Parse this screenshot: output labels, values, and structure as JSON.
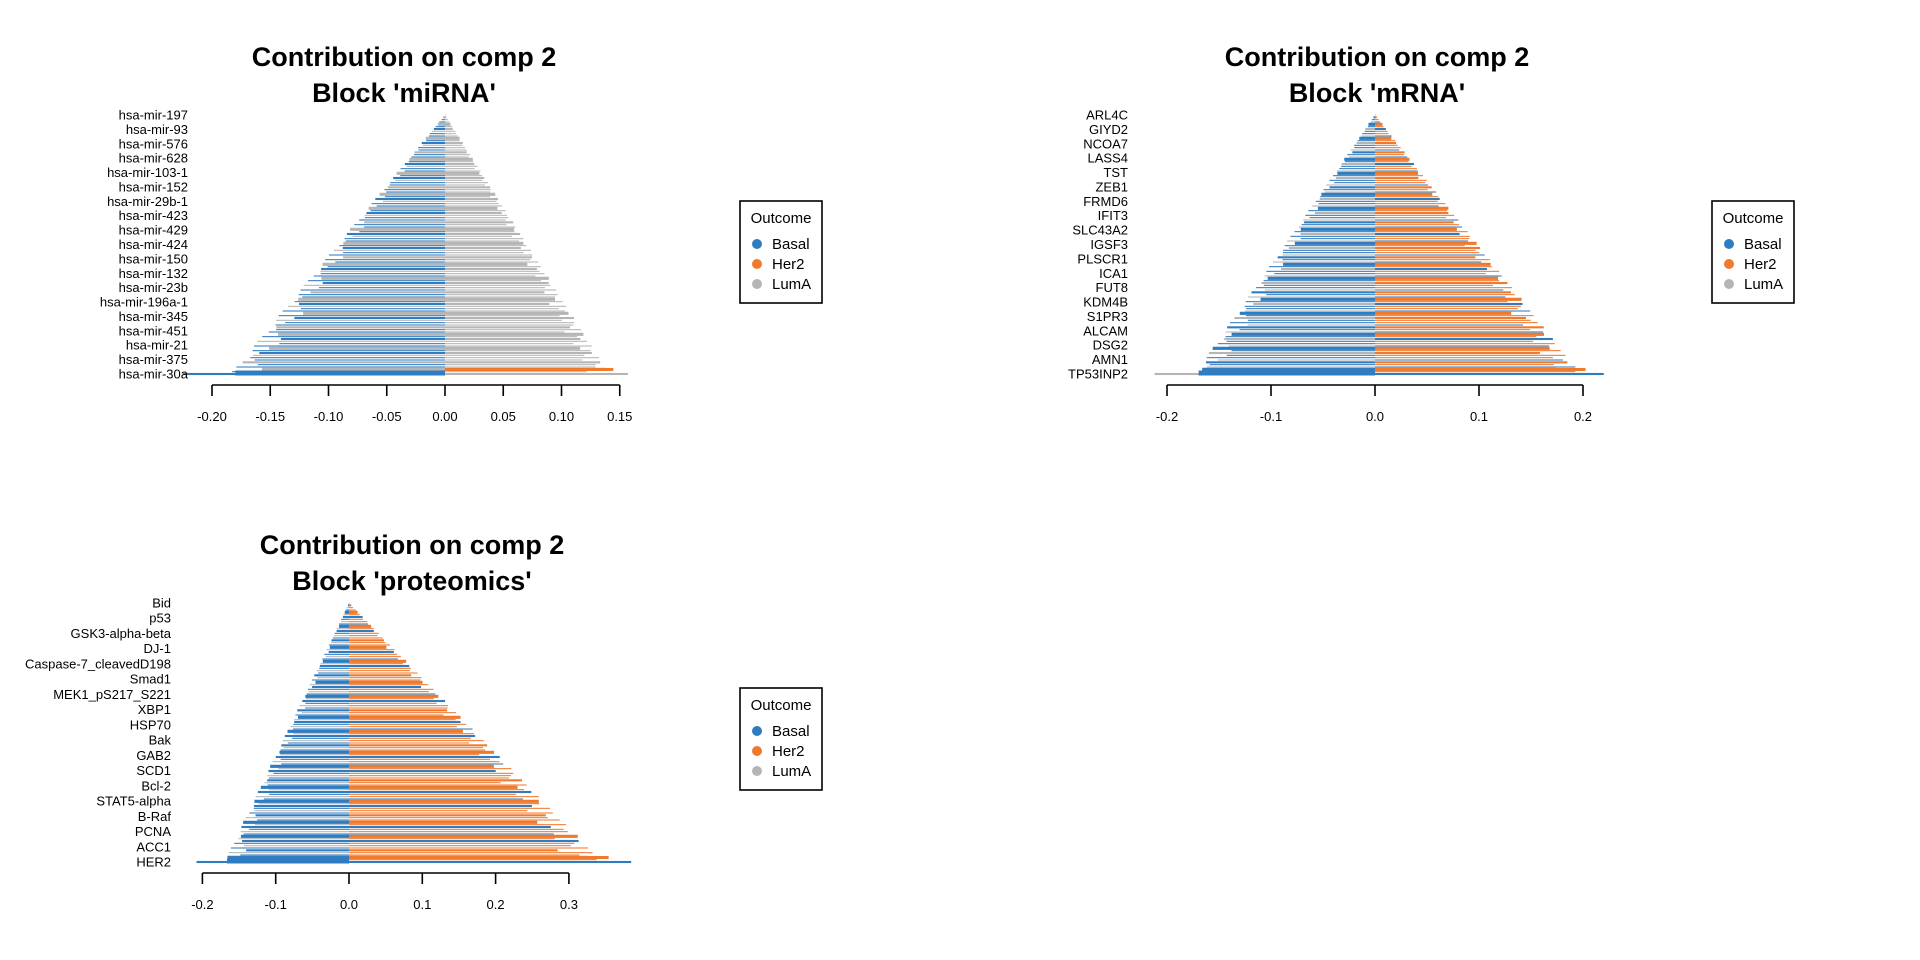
{
  "chart_data": [
    {
      "type": "bar",
      "orientation": "horizontal",
      "title": "Contribution on comp 2",
      "subtitle": "Block 'miRNA'",
      "xlabel": "",
      "ylabel": "",
      "xlim": [
        -0.2,
        0.15
      ],
      "xticks": [
        "-0.20",
        "-0.15",
        "-0.10",
        "-0.05",
        "0.00",
        "0.05",
        "0.10",
        "0.15"
      ],
      "xtick_values": [
        -0.2,
        -0.15,
        -0.1,
        -0.05,
        0.0,
        0.05,
        0.1,
        0.15
      ],
      "categories": [
        "hsa-mir-197",
        "hsa-mir-93",
        "hsa-mir-576",
        "hsa-mir-628",
        "hsa-mir-103-1",
        "hsa-mir-152",
        "hsa-mir-29b-1",
        "hsa-mir-423",
        "hsa-mir-429",
        "hsa-mir-424",
        "hsa-mir-150",
        "hsa-mir-132",
        "hsa-mir-23b",
        "hsa-mir-196a-1",
        "hsa-mir-345",
        "hsa-mir-451",
        "hsa-mir-21",
        "hsa-mir-375",
        "hsa-mir-30a"
      ],
      "extreme_neg": -0.225,
      "extreme_pos": 0.157,
      "spread": 6,
      "legend": {
        "title": "Outcome",
        "placement": "right"
      }
    },
    {
      "type": "bar",
      "orientation": "horizontal",
      "title": "Contribution on comp 2",
      "subtitle": "Block 'mRNA'",
      "xlabel": "",
      "ylabel": "",
      "xlim": [
        -0.2,
        0.2
      ],
      "xticks": [
        "-0.2",
        "-0.1",
        "0.0",
        "0.1",
        "0.2"
      ],
      "xtick_values": [
        -0.2,
        -0.1,
        0.0,
        0.1,
        0.2
      ],
      "categories": [
        "ARL4C",
        "GIYD2",
        "NCOA7",
        "LASS4",
        "TST",
        "ZEB1",
        "FRMD6",
        "IFIT3",
        "SLC43A2",
        "IGSF3",
        "PLSCR1",
        "ICA1",
        "FUT8",
        "KDM4B",
        "S1PR3",
        "ALCAM",
        "DSG2",
        "AMN1",
        "TP53INP2"
      ],
      "extreme_neg": -0.212,
      "extreme_pos": 0.22,
      "spread": 6,
      "legend": {
        "title": "Outcome",
        "placement": "right"
      }
    },
    {
      "type": "bar",
      "orientation": "horizontal",
      "title": "Contribution on comp 2",
      "subtitle": "Block 'proteomics'",
      "xlabel": "",
      "ylabel": "",
      "xlim": [
        -0.2,
        0.3
      ],
      "xticks": [
        "-0.2",
        "-0.1",
        "0.0",
        "0.1",
        "0.2",
        "0.3"
      ],
      "xtick_values": [
        -0.2,
        -0.1,
        0.0,
        0.1,
        0.2,
        0.3
      ],
      "categories": [
        "Bid",
        "p53",
        "GSK3-alpha-beta",
        "DJ-1",
        "Caspase-7_cleavedD198",
        "Smad1",
        "MEK1_pS217_S221",
        "XBP1",
        "HSP70",
        "Bak",
        "GAB2",
        "SCD1",
        "Bcl-2",
        "STAT5-alpha",
        "B-Raf",
        "PCNA",
        "ACC1",
        "HER2"
      ],
      "extreme_neg": -0.208,
      "extreme_pos": 0.385,
      "spread": 6,
      "legend": {
        "title": "Outcome",
        "placement": "right"
      }
    }
  ],
  "legend": {
    "title": "Outcome",
    "items": [
      {
        "label": "Basal",
        "color": "#2F7CC1"
      },
      {
        "label": "Her2",
        "color": "#EF7A2E"
      },
      {
        "label": "LumA",
        "color": "#B5B5B5"
      }
    ]
  },
  "colors": {
    "Basal": "#2F7CC1",
    "Her2": "#EF7A2E",
    "LumA": "#B5B5B5"
  }
}
